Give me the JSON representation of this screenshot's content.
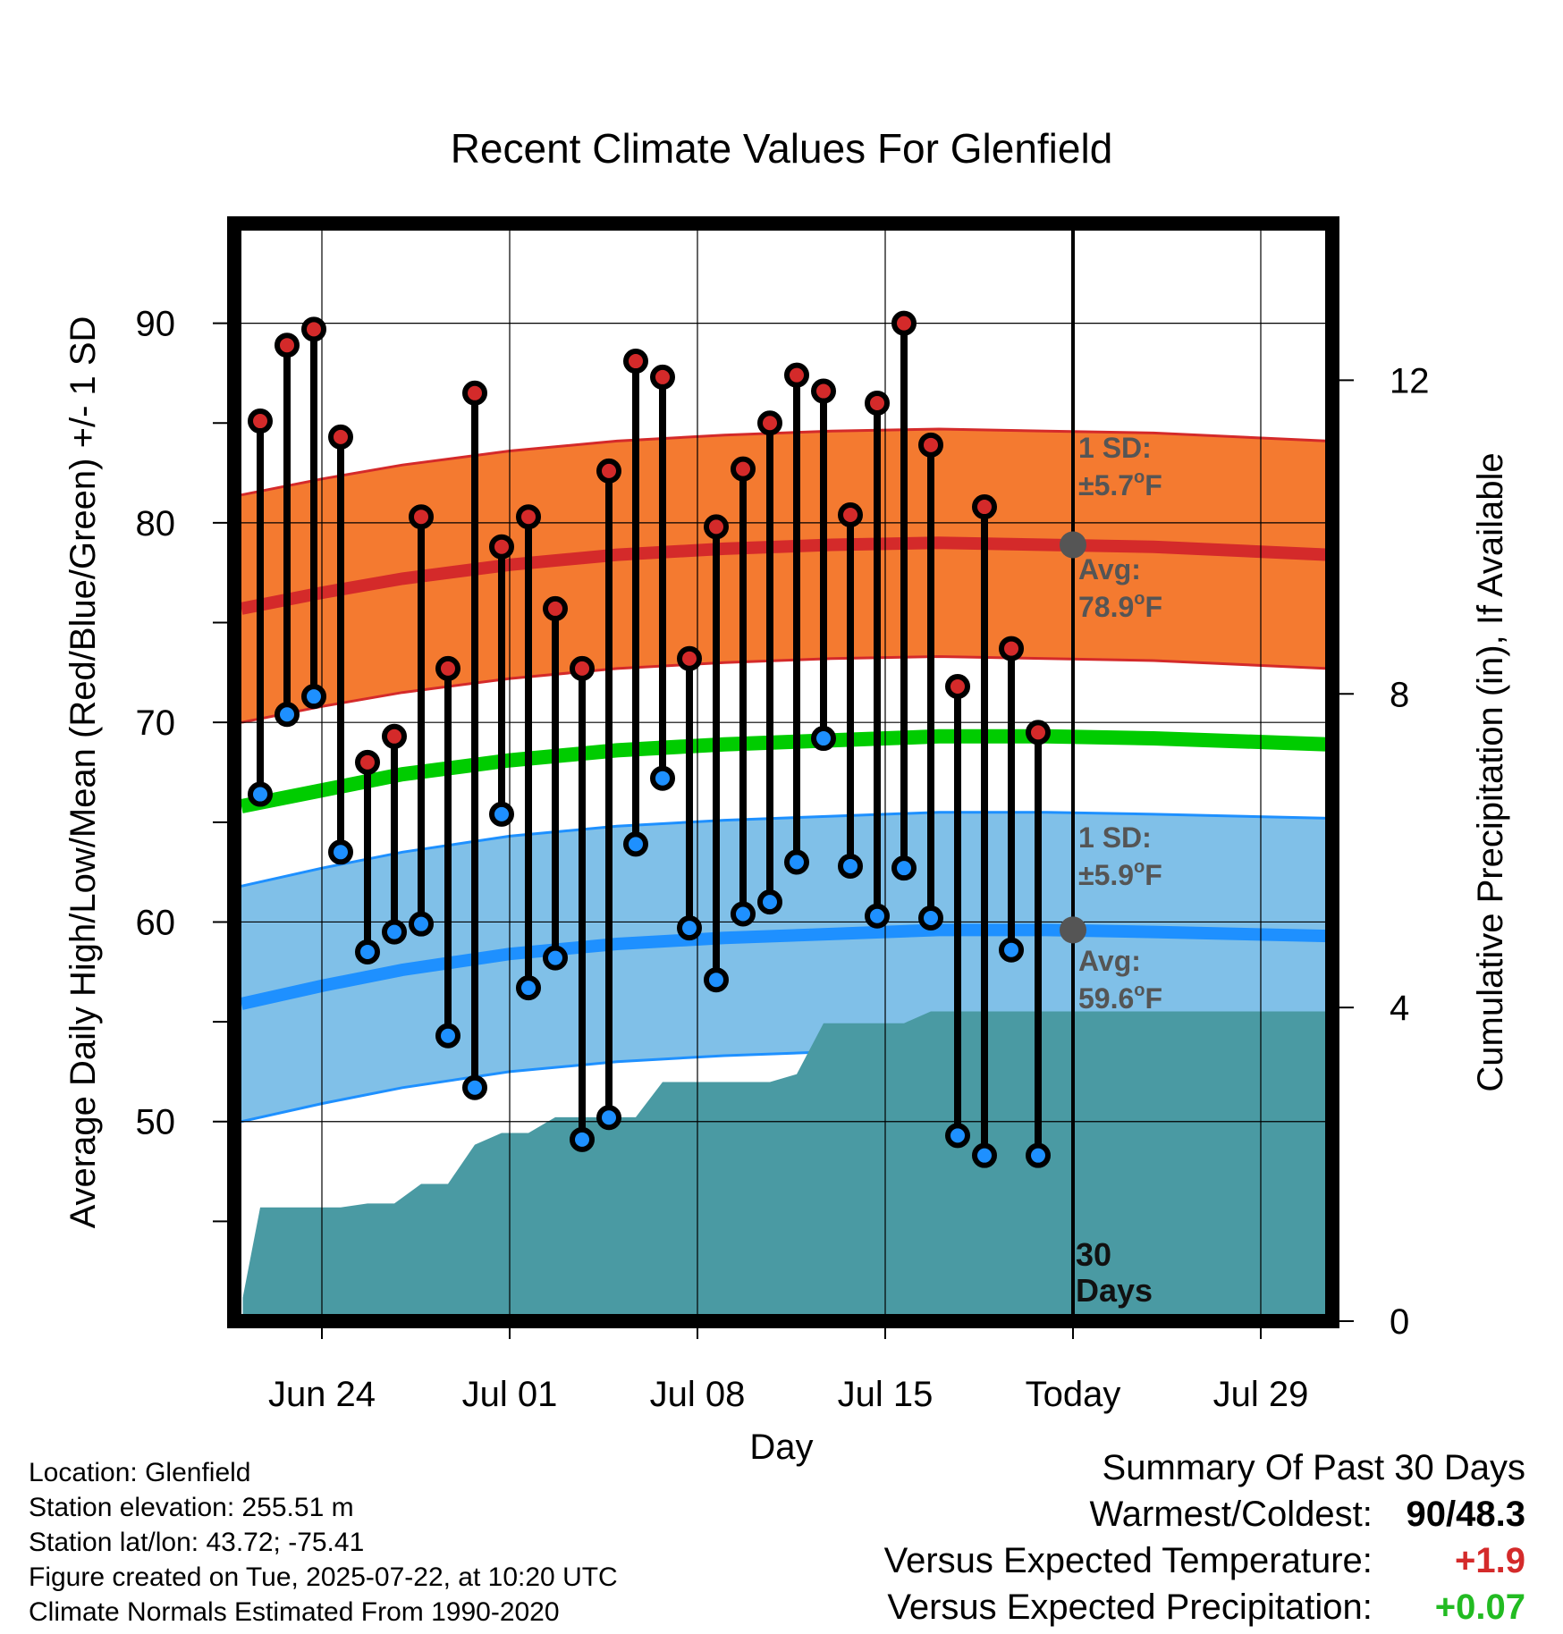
{
  "chart_data": {
    "type": "line",
    "title": "Recent Climate Values For Glenfield",
    "xlabel": "Day",
    "ylabel": "Average Daily High/Low/Mean (Red/Blue/Green) +/- 1 SD",
    "y2label": "Cumulative Precipitation (in), If Available",
    "ylim": [
      40,
      95
    ],
    "y2lim": [
      0,
      14
    ],
    "yticks": [
      "50",
      "60",
      "70",
      "80",
      "90"
    ],
    "y2ticks": [
      "0",
      "4",
      "8",
      "12"
    ],
    "xticks": [
      {
        "day": 3,
        "label": "Jun 24"
      },
      {
        "day": 10,
        "label": "Jul 01"
      },
      {
        "day": 17,
        "label": "Jul 08"
      },
      {
        "day": 24,
        "label": "Jul 15"
      },
      {
        "day": 31,
        "label": "Today"
      },
      {
        "day": 38,
        "label": "Jul 29"
      }
    ],
    "x_start_date": "Jun 21",
    "today_day": 31,
    "today_label": "30 Days",
    "normals": {
      "days": [
        0,
        3,
        6,
        10,
        14,
        18,
        22,
        26,
        30,
        34,
        40.5
      ],
      "high_avg": [
        75.7,
        76.5,
        77.2,
        77.9,
        78.4,
        78.7,
        78.9,
        79.0,
        78.9,
        78.8,
        78.4
      ],
      "high_sd": 5.7,
      "low_avg": [
        55.9,
        56.8,
        57.6,
        58.4,
        58.9,
        59.2,
        59.4,
        59.6,
        59.6,
        59.5,
        59.3
      ],
      "low_sd": 5.9,
      "mean_avg": [
        65.8,
        66.6,
        67.4,
        68.1,
        68.6,
        68.9,
        69.1,
        69.3,
        69.3,
        69.2,
        68.9
      ]
    },
    "series": [
      {
        "name": "High",
        "color": "#d42a2a",
        "days": [
          0.7,
          1.7,
          2.7,
          3.7,
          4.7,
          5.7,
          6.7,
          7.7,
          8.7,
          9.7,
          10.7,
          11.7,
          12.7,
          13.7,
          14.7,
          15.7,
          16.7,
          17.7,
          18.7,
          19.7,
          20.7,
          21.7,
          22.7,
          23.7,
          24.7,
          25.7,
          26.7,
          27.7,
          28.7,
          29.7
        ],
        "values": [
          85.1,
          88.9,
          89.7,
          84.3,
          68.0,
          69.3,
          80.3,
          72.7,
          86.5,
          78.8,
          80.3,
          75.7,
          72.7,
          82.6,
          88.1,
          87.3,
          73.2,
          79.8,
          82.7,
          85.0,
          87.4,
          86.6,
          80.4,
          86.0,
          90.0,
          83.9,
          71.8,
          80.8,
          73.7,
          69.5
        ]
      },
      {
        "name": "Low",
        "color": "#1e90ff",
        "values": [
          66.4,
          70.4,
          71.3,
          63.5,
          58.5,
          59.5,
          59.9,
          54.3,
          51.7,
          65.4,
          56.7,
          58.2,
          49.1,
          50.2,
          63.9,
          67.2,
          59.7,
          57.1,
          60.4,
          61.0,
          63.0,
          69.2,
          62.8,
          60.3,
          62.7,
          60.2,
          49.3,
          48.3,
          58.6,
          48.3
        ]
      }
    ],
    "precip": {
      "color": "#4a9aa3",
      "days": [
        0.05,
        0.7,
        1.7,
        2.7,
        3.7,
        4.7,
        5.7,
        6.7,
        7.7,
        8.7,
        9.7,
        10.7,
        11.7,
        12.7,
        13.7,
        14.7,
        15.7,
        16.7,
        17.7,
        18.7,
        19.7,
        20.7,
        21.7,
        22.7,
        23.7,
        24.7,
        25.7,
        26.7,
        27.7,
        28.7,
        29.7,
        31,
        40.5
      ],
      "values": [
        0.3,
        1.45,
        1.45,
        1.45,
        1.45,
        1.5,
        1.5,
        1.75,
        1.75,
        2.25,
        2.4,
        2.4,
        2.6,
        2.6,
        2.6,
        2.6,
        3.05,
        3.05,
        3.05,
        3.05,
        3.05,
        3.15,
        3.8,
        3.8,
        3.8,
        3.8,
        3.95,
        3.95,
        3.95,
        3.95,
        3.95,
        3.95,
        3.95
      ]
    },
    "annotations": {
      "high_sd_label": "1 SD:",
      "high_sd_value": "±5.7°F",
      "high_avg_label": "Avg:",
      "high_avg_value": "78.9°F",
      "low_sd_label": "1 SD:",
      "low_sd_value": "±5.9°F",
      "low_avg_label": "Avg:",
      "low_avg_value": "59.6°F"
    },
    "colors": {
      "high_band": "#f47a30",
      "high_line": "#d42a2a",
      "low_band": "#80c0e8",
      "low_line": "#1e90ff",
      "mean_line": "#00cc00",
      "marker_today": "#555555"
    }
  },
  "meta": {
    "location": "Location: Glenfield",
    "elevation": "Station elevation: 255.51 m",
    "latlon": "Station lat/lon: 43.72; -75.41",
    "created": "Figure created on Tue, 2025-07-22, at 10:20 UTC",
    "normals": "Climate Normals Estimated From 1990-2020"
  },
  "summary": {
    "heading": "Summary Of Past 30 Days",
    "warm_cold_label": "Warmest/Coldest:",
    "warm_cold_value": "90/48.3",
    "temp_label": "Versus Expected Temperature:",
    "temp_value": "+1.9",
    "temp_color": "#d42a2a",
    "precip_label": "Versus Expected Precipitation:",
    "precip_value": "+0.07",
    "precip_color": "#22bb22"
  }
}
